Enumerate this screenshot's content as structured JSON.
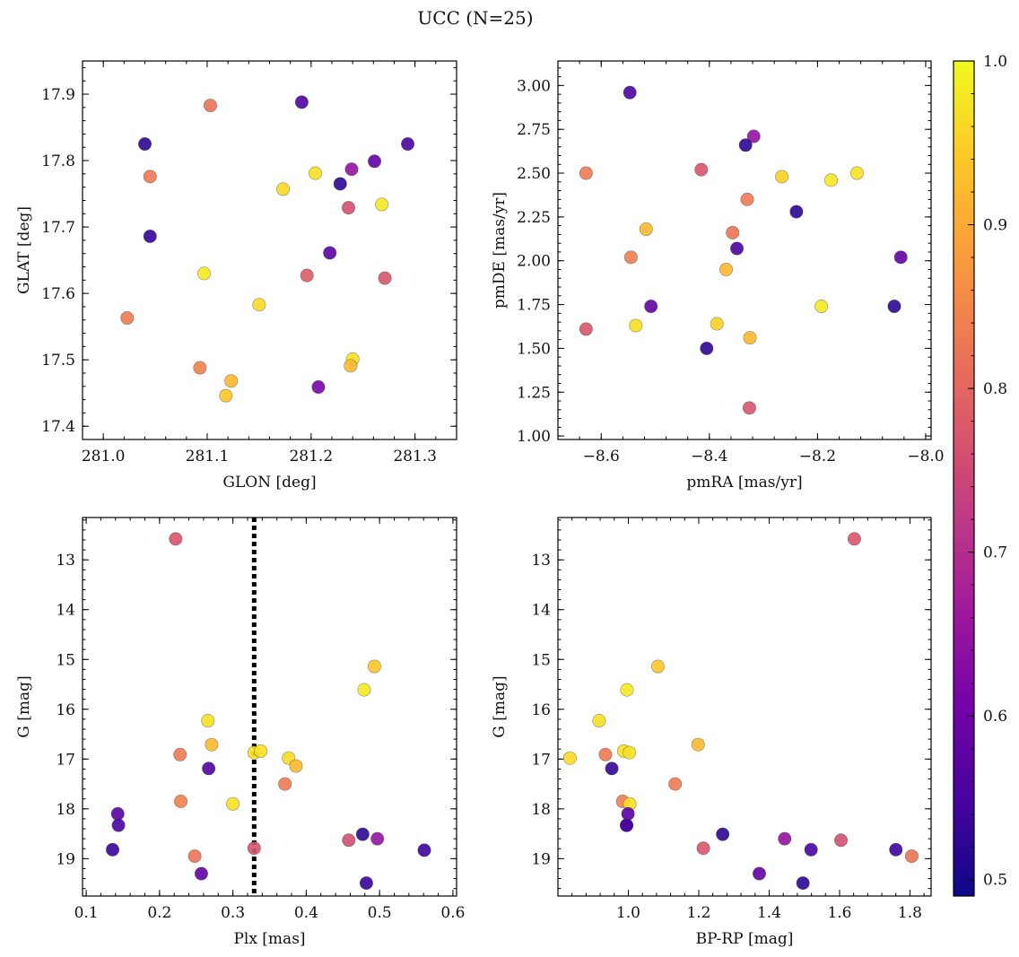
{
  "figure": {
    "title": "UCC (N=25)"
  },
  "colorbar": {
    "min": 0.49,
    "max": 1.0,
    "ticks": [
      "1.0",
      "0.9",
      "0.8",
      "0.7",
      "0.6",
      "0.5"
    ],
    "tick_values": [
      1.0,
      0.9,
      0.8,
      0.7,
      0.6,
      0.5
    ],
    "cmap": [
      "#0d0887",
      "#46039f",
      "#7201a8",
      "#9c179e",
      "#bd3786",
      "#d8576b",
      "#ed7953",
      "#fb9f3a",
      "#fdca26",
      "#f0f921"
    ]
  },
  "chart_data": [
    {
      "id": "glon-glat",
      "type": "scatter",
      "xlabel": "GLON [deg]",
      "ylabel": "GLAT [deg]",
      "xlim": [
        280.98,
        281.34
      ],
      "ylim": [
        17.38,
        17.95
      ],
      "invert_y": false,
      "xticks": [
        "281.0",
        "281.1",
        "281.2",
        "281.3"
      ],
      "xtick_values": [
        281.0,
        281.1,
        281.2,
        281.3
      ],
      "yticks": [
        "17.4",
        "17.5",
        "17.6",
        "17.7",
        "17.8",
        "17.9"
      ],
      "ytick_values": [
        17.4,
        17.5,
        17.6,
        17.7,
        17.8,
        17.9
      ],
      "x": [
        281.04,
        281.103,
        281.191,
        281.293,
        281.045,
        281.204,
        281.239,
        281.261,
        281.228,
        281.173,
        281.268,
        281.236,
        281.045,
        281.218,
        281.097,
        281.196,
        281.271,
        281.15,
        281.023,
        281.24,
        281.238,
        281.093,
        281.123,
        281.118,
        281.207
      ],
      "y": [
        17.825,
        17.883,
        17.888,
        17.825,
        17.776,
        17.781,
        17.787,
        17.799,
        17.765,
        17.757,
        17.734,
        17.729,
        17.686,
        17.661,
        17.63,
        17.627,
        17.623,
        17.583,
        17.563,
        17.501,
        17.491,
        17.488,
        17.468,
        17.446,
        17.459
      ],
      "c": [
        0.52,
        0.82,
        0.56,
        0.55,
        0.83,
        0.97,
        0.65,
        0.58,
        0.52,
        0.96,
        0.98,
        0.76,
        0.53,
        0.57,
        0.98,
        0.78,
        0.77,
        0.96,
        0.83,
        0.97,
        0.92,
        0.84,
        0.92,
        0.94,
        0.61
      ]
    },
    {
      "id": "pmra-pmde",
      "type": "scatter",
      "xlabel": "pmRA [mas/yr]",
      "ylabel": "pmDE [mas/yr]",
      "xlim": [
        -8.68,
        -7.99
      ],
      "ylim": [
        0.98,
        3.14
      ],
      "invert_y": false,
      "xticks": [
        "−8.6",
        "−8.4",
        "−8.2",
        "−8.0"
      ],
      "xtick_values": [
        -8.6,
        -8.4,
        -8.2,
        -8.0
      ],
      "yticks": [
        "1.00",
        "1.25",
        "1.50",
        "1.75",
        "2.00",
        "2.25",
        "2.50",
        "2.75",
        "3.00"
      ],
      "ytick_values": [
        1.0,
        1.25,
        1.5,
        1.75,
        2.0,
        2.25,
        2.5,
        2.75,
        3.0
      ],
      "x": [
        -8.547,
        -8.318,
        -8.333,
        -8.628,
        -8.415,
        -8.127,
        -8.266,
        -8.175,
        -8.33,
        -8.239,
        -8.517,
        -8.357,
        -8.349,
        -8.545,
        -8.369,
        -8.046,
        -8.508,
        -8.058,
        -8.193,
        -8.386,
        -8.536,
        -8.628,
        -8.405,
        -8.325,
        -8.326
      ],
      "y": [
        2.96,
        2.71,
        2.66,
        2.5,
        2.52,
        2.5,
        2.48,
        2.46,
        2.35,
        2.28,
        2.18,
        2.16,
        2.07,
        2.02,
        1.95,
        2.02,
        1.74,
        1.74,
        1.74,
        1.64,
        1.63,
        1.61,
        1.5,
        1.56,
        1.16
      ],
      "c": [
        0.55,
        0.65,
        0.52,
        0.83,
        0.77,
        0.97,
        0.95,
        0.98,
        0.83,
        0.52,
        0.92,
        0.82,
        0.55,
        0.84,
        0.92,
        0.58,
        0.58,
        0.52,
        0.98,
        0.95,
        0.97,
        0.77,
        0.52,
        0.92,
        0.77
      ]
    },
    {
      "id": "plx-g",
      "type": "scatter",
      "xlabel": "Plx [mas]",
      "ylabel": "G [mag]",
      "xlim": [
        0.095,
        0.605
      ],
      "ylim": [
        12.15,
        19.75
      ],
      "invert_y": true,
      "xticks": [
        "0.1",
        "0.2",
        "0.3",
        "0.4",
        "0.5",
        "0.6"
      ],
      "xtick_values": [
        0.1,
        0.2,
        0.3,
        0.4,
        0.5,
        0.6
      ],
      "yticks": [
        "13",
        "14",
        "15",
        "16",
        "17",
        "18",
        "19"
      ],
      "ytick_values": [
        13,
        14,
        15,
        16,
        17,
        18,
        19
      ],
      "vline": 0.329,
      "x": [
        0.222,
        0.493,
        0.479,
        0.266,
        0.271,
        0.228,
        0.267,
        0.329,
        0.338,
        0.376,
        0.386,
        0.371,
        0.229,
        0.3,
        0.143,
        0.144,
        0.136,
        0.477,
        0.458,
        0.497,
        0.248,
        0.329,
        0.257,
        0.482,
        0.561
      ],
      "y": [
        12.58,
        15.14,
        15.61,
        16.23,
        16.71,
        16.91,
        17.19,
        16.87,
        16.84,
        16.98,
        17.14,
        17.5,
        17.85,
        17.9,
        18.1,
        18.33,
        18.82,
        18.51,
        18.63,
        18.6,
        18.95,
        18.79,
        19.3,
        19.49,
        18.83
      ],
      "c": [
        0.77,
        0.94,
        0.98,
        0.97,
        0.92,
        0.83,
        0.56,
        0.97,
        0.97,
        0.96,
        0.92,
        0.83,
        0.84,
        0.97,
        0.57,
        0.55,
        0.53,
        0.52,
        0.76,
        0.65,
        0.82,
        0.77,
        0.58,
        0.53,
        0.54
      ]
    },
    {
      "id": "bprp-g",
      "type": "scatter",
      "xlabel": "BP-RP [mag]",
      "ylabel": "G [mag]",
      "xlim": [
        0.8,
        1.86
      ],
      "ylim": [
        12.15,
        19.75
      ],
      "invert_y": true,
      "xticks": [
        "1.0",
        "1.2",
        "1.4",
        "1.6",
        "1.8"
      ],
      "xtick_values": [
        1.0,
        1.2,
        1.4,
        1.6,
        1.8
      ],
      "yticks": [
        "13",
        "14",
        "15",
        "16",
        "17",
        "18",
        "19"
      ],
      "ytick_values": [
        13,
        14,
        15,
        16,
        17,
        18,
        19
      ],
      "x": [
        1.642,
        1.084,
        0.996,
        0.917,
        1.198,
        0.935,
        0.953,
        0.987,
        1.003,
        0.834,
        1.133,
        0.984,
        1.004,
        0.999,
        0.995,
        1.268,
        1.444,
        1.604,
        1.213,
        1.519,
        1.76,
        1.805,
        1.372,
        1.496,
        0.995
      ],
      "y": [
        12.58,
        15.14,
        15.61,
        16.23,
        16.71,
        16.91,
        17.19,
        16.84,
        16.87,
        16.98,
        17.5,
        17.85,
        17.9,
        18.1,
        18.33,
        18.51,
        18.6,
        18.63,
        18.79,
        18.82,
        18.82,
        18.95,
        19.3,
        19.49,
        18.33
      ],
      "c": [
        0.77,
        0.94,
        0.98,
        0.97,
        0.92,
        0.83,
        0.53,
        0.97,
        0.97,
        0.96,
        0.83,
        0.84,
        0.97,
        0.57,
        0.55,
        0.52,
        0.65,
        0.76,
        0.77,
        0.55,
        0.54,
        0.82,
        0.58,
        0.52,
        0.55
      ]
    }
  ]
}
